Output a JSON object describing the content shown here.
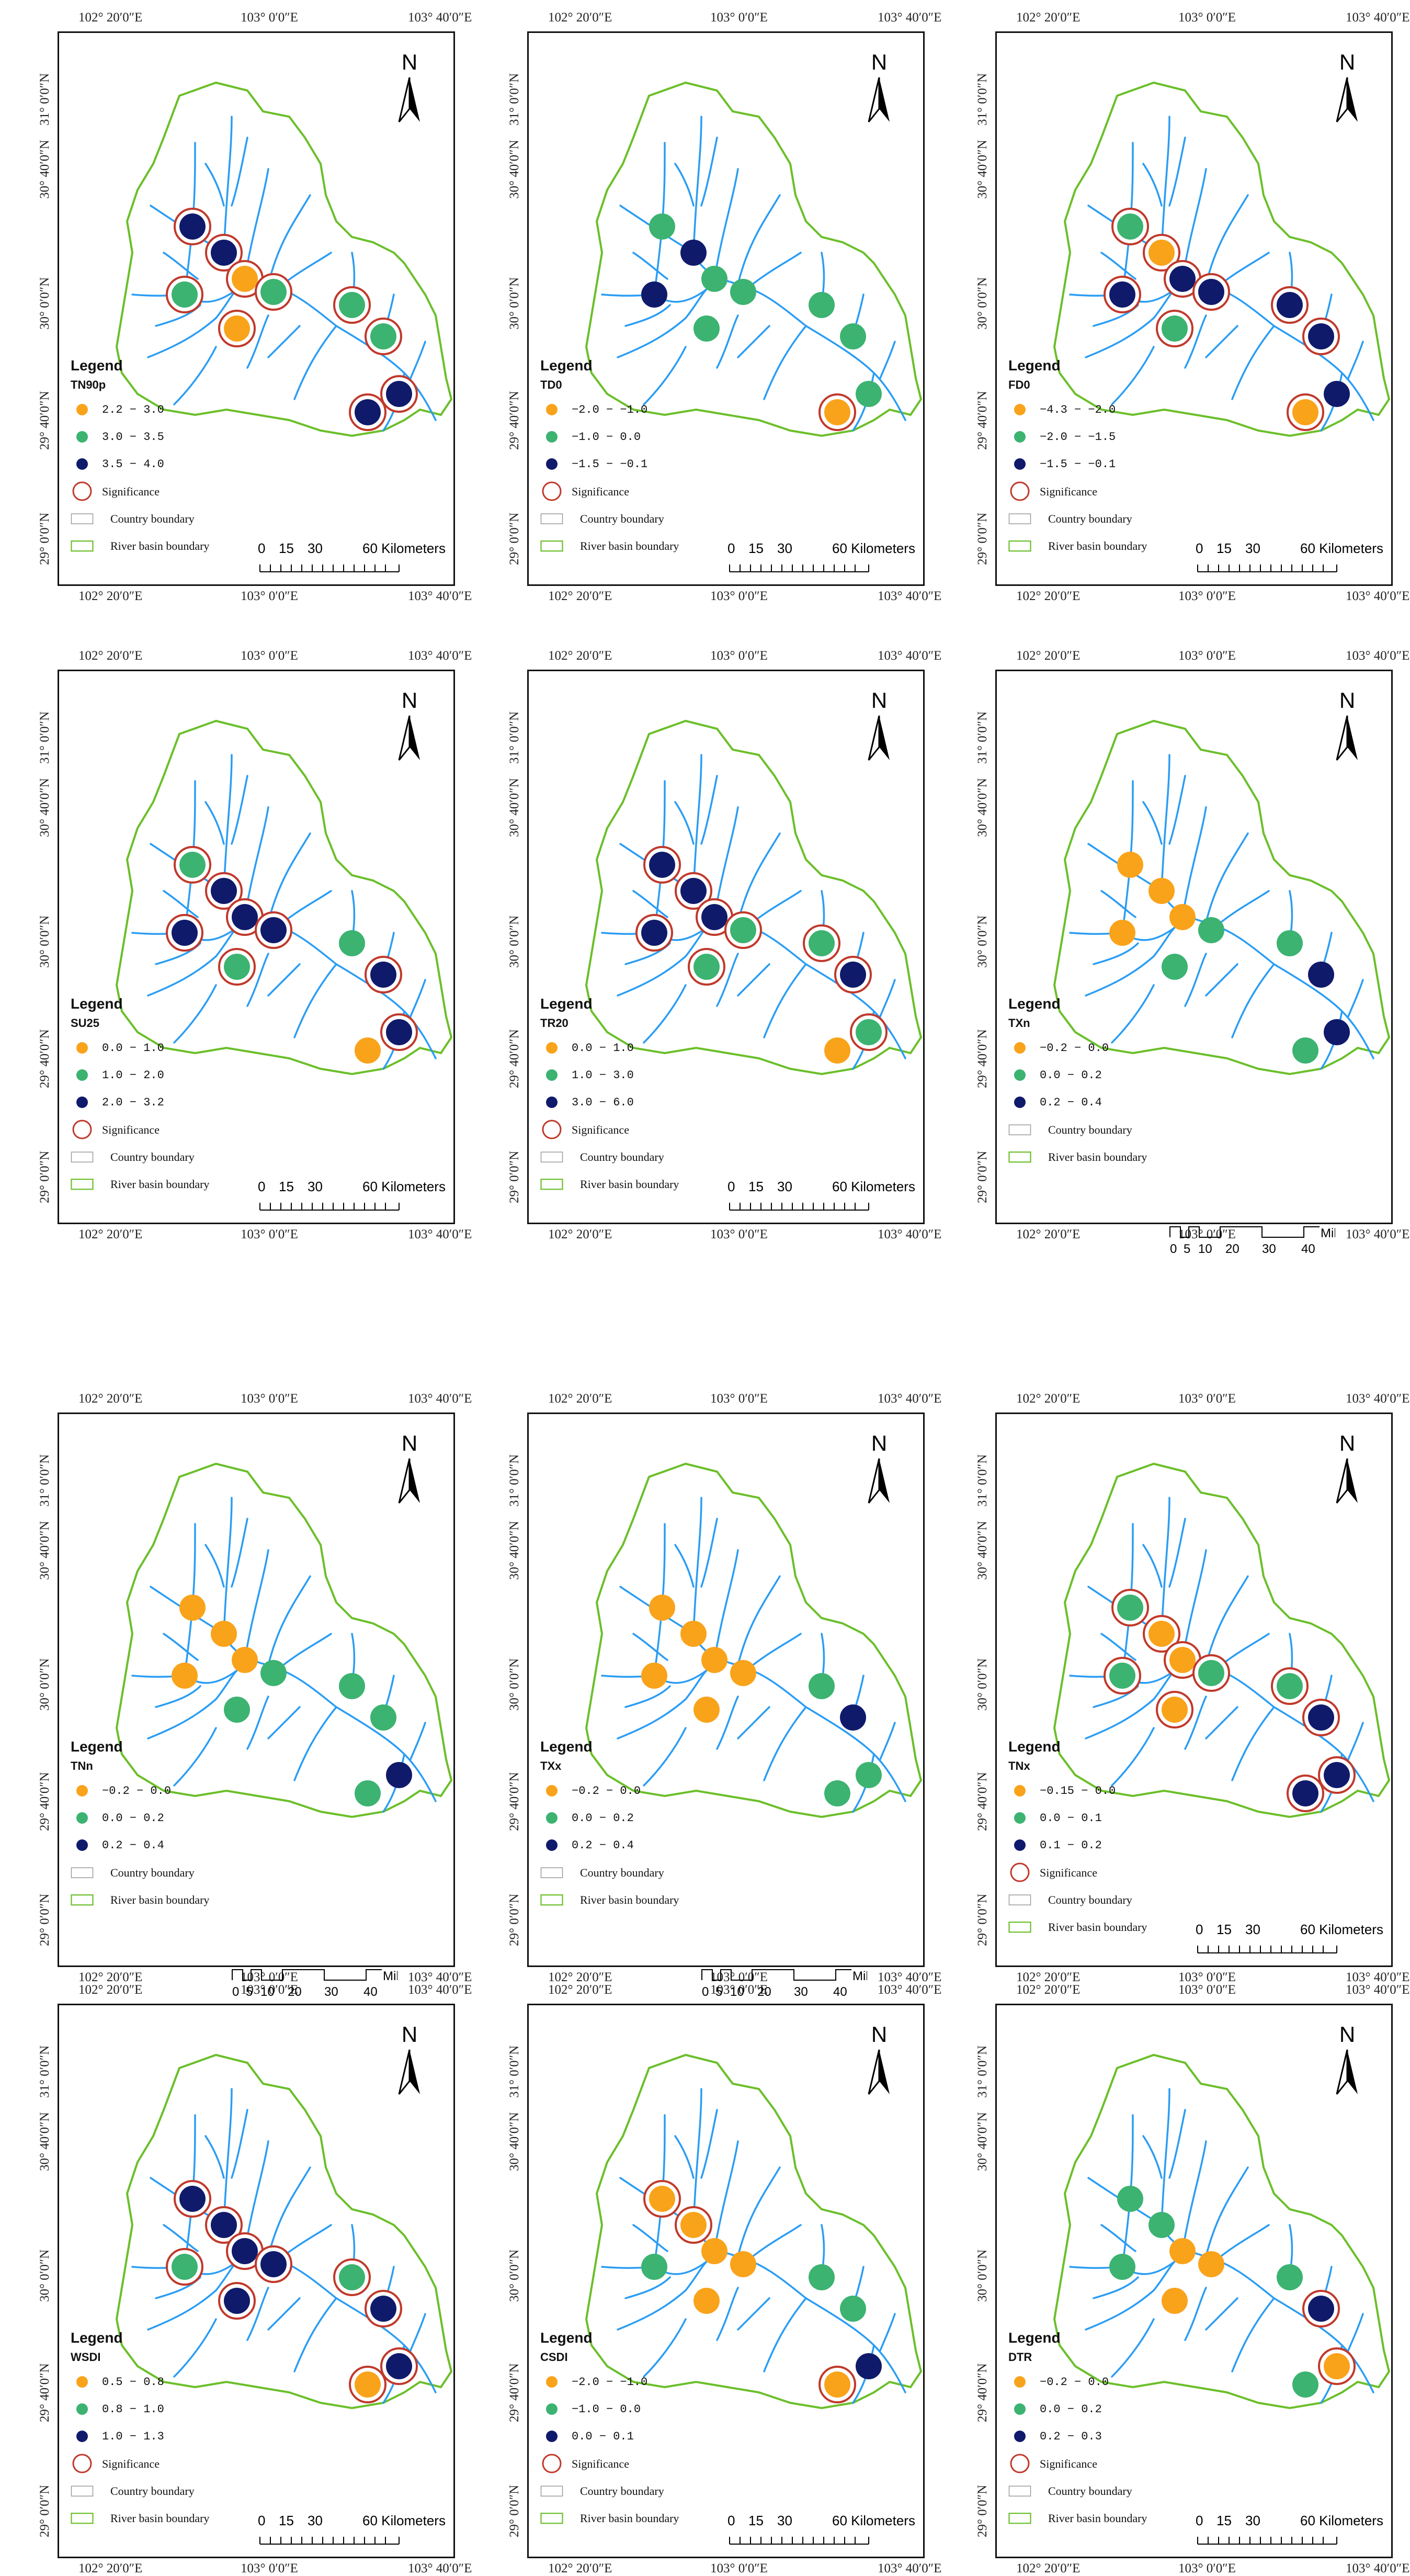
{
  "page": {
    "width_label": "2696x4883"
  },
  "coords": {
    "top_lon": [
      "102° 20′0″E",
      "103° 0′0″E",
      "103° 40′0″E"
    ],
    "lat": [
      "31° 0′0″N",
      "30° 40′0″N",
      "30° 0′0″N",
      "29° 40′0″N",
      "29° 0′0″N"
    ],
    "side_lat_left": [
      "31° 0′0″N",
      "30° 40′0″N",
      "30° 0′0″N",
      "29° 40′0″N",
      "29° 0′0″N"
    ]
  },
  "legend_title": "Legend",
  "significance_label": "Significance",
  "country_label": "Country boundary",
  "basin_label": "River basin boundary",
  "north_label": "N",
  "km_scale": {
    "ticks": [
      "0",
      "15",
      "30",
      "60 Kilometers"
    ]
  },
  "mile_scale": {
    "ticks_top": [
      "0",
      "5",
      "10",
      "20",
      "30",
      "40"
    ],
    "unit": "Miles"
  },
  "colors": {
    "orange": "#f9a31b",
    "green": "#3cb371",
    "navy": "#101a6b",
    "ring": "#c0392b",
    "river": "#2a9df4",
    "basin": "#6bbf2a"
  },
  "panels": [
    {
      "id": "TN90p",
      "index": "TN90p",
      "classes": [
        "2.2 − 3.0",
        "3.0 − 3.5",
        "3.5 − 4.0"
      ],
      "sig": true,
      "scale": "km",
      "stations": [
        [
          "navy",
          1
        ],
        [
          "green",
          1
        ],
        [
          "navy",
          1
        ],
        [
          "orange",
          1
        ],
        [
          "green",
          1
        ],
        [
          "orange",
          1
        ],
        [
          "green",
          1
        ],
        [
          "green",
          1
        ],
        [
          "navy",
          1
        ],
        [
          "navy",
          1
        ]
      ]
    },
    {
      "id": "TD0",
      "index": "TD0",
      "classes": [
        "−2.0 − −1.0",
        "−1.0 − 0.0",
        "−1.5 − −0.1"
      ],
      "sig": true,
      "scale": "km",
      "stations": [
        [
          "green",
          0
        ],
        [
          "navy",
          0
        ],
        [
          "navy",
          0
        ],
        [
          "green",
          0
        ],
        [
          "green",
          0
        ],
        [
          "green",
          0
        ],
        [
          "green",
          0
        ],
        [
          "green",
          0
        ],
        [
          "orange",
          1
        ],
        [
          "green",
          0
        ]
      ]
    },
    {
      "id": "FD0",
      "index": "FD0",
      "classes": [
        "−4.3 − −2.0",
        "−2.0 − −1.5",
        "−1.5 − −0.1"
      ],
      "sig": true,
      "scale": "km",
      "stations": [
        [
          "green",
          1
        ],
        [
          "navy",
          1
        ],
        [
          "orange",
          1
        ],
        [
          "navy",
          1
        ],
        [
          "navy",
          1
        ],
        [
          "green",
          1
        ],
        [
          "navy",
          1
        ],
        [
          "navy",
          1
        ],
        [
          "orange",
          1
        ],
        [
          "navy",
          0
        ]
      ]
    },
    {
      "id": "SU25",
      "index": "SU25",
      "classes": [
        "0.0 − 1.0",
        "1.0 − 2.0",
        "2.0 − 3.2"
      ],
      "sig": true,
      "scale": "km",
      "stations": [
        [
          "green",
          1
        ],
        [
          "navy",
          1
        ],
        [
          "navy",
          1
        ],
        [
          "navy",
          1
        ],
        [
          "navy",
          1
        ],
        [
          "green",
          1
        ],
        [
          "green",
          0
        ],
        [
          "navy",
          1
        ],
        [
          "orange",
          0
        ],
        [
          "navy",
          1
        ]
      ]
    },
    {
      "id": "TR20",
      "index": "TR20",
      "classes": [
        "0.0 − 1.0",
        "1.0 − 3.0",
        "3.0 − 6.0"
      ],
      "sig": true,
      "scale": "km",
      "stations": [
        [
          "navy",
          1
        ],
        [
          "navy",
          1
        ],
        [
          "navy",
          1
        ],
        [
          "navy",
          1
        ],
        [
          "green",
          1
        ],
        [
          "green",
          1
        ],
        [
          "green",
          1
        ],
        [
          "navy",
          1
        ],
        [
          "orange",
          0
        ],
        [
          "green",
          1
        ]
      ]
    },
    {
      "id": "TXn",
      "index": "TXn",
      "classes": [
        "−0.2 − 0.0",
        "0.0 − 0.2",
        "0.2 − 0.4"
      ],
      "sig": false,
      "scale": "miles",
      "stations": [
        [
          "orange",
          0
        ],
        [
          "orange",
          0
        ],
        [
          "orange",
          0
        ],
        [
          "orange",
          0
        ],
        [
          "green",
          0
        ],
        [
          "green",
          0
        ],
        [
          "green",
          0
        ],
        [
          "navy",
          0
        ],
        [
          "green",
          0
        ],
        [
          "navy",
          0
        ]
      ]
    },
    {
      "id": "TNn",
      "index": "TNn",
      "classes": [
        "−0.2 − 0.0",
        "0.0 − 0.2",
        "0.2 − 0.4"
      ],
      "sig": false,
      "scale": "miles",
      "stations": [
        [
          "orange",
          0
        ],
        [
          "orange",
          0
        ],
        [
          "orange",
          0
        ],
        [
          "orange",
          0
        ],
        [
          "green",
          0
        ],
        [
          "green",
          0
        ],
        [
          "green",
          0
        ],
        [
          "green",
          0
        ],
        [
          "green",
          0
        ],
        [
          "navy",
          0
        ]
      ]
    },
    {
      "id": "TXx",
      "index": "TXx",
      "classes": [
        "−0.2 − 0.0",
        "0.0 − 0.2",
        "0.2 − 0.4"
      ],
      "sig": false,
      "scale": "miles",
      "stations": [
        [
          "orange",
          0
        ],
        [
          "orange",
          0
        ],
        [
          "orange",
          0
        ],
        [
          "orange",
          0
        ],
        [
          "orange",
          0
        ],
        [
          "orange",
          0
        ],
        [
          "green",
          0
        ],
        [
          "navy",
          0
        ],
        [
          "green",
          0
        ],
        [
          "green",
          0
        ]
      ]
    },
    {
      "id": "TNx",
      "index": "TNx",
      "classes": [
        "−0.15 − 0.0",
        "0.0 − 0.1",
        "0.1 − 0.2"
      ],
      "sig": true,
      "scale": "km",
      "stations": [
        [
          "green",
          1
        ],
        [
          "green",
          1
        ],
        [
          "orange",
          1
        ],
        [
          "orange",
          1
        ],
        [
          "green",
          1
        ],
        [
          "orange",
          1
        ],
        [
          "green",
          1
        ],
        [
          "navy",
          1
        ],
        [
          "navy",
          1
        ],
        [
          "navy",
          1
        ]
      ]
    },
    {
      "id": "WSDI",
      "index": "WSDI",
      "classes": [
        "0.5 − 0.8",
        "0.8 − 1.0",
        "1.0 − 1.3"
      ],
      "sig": true,
      "scale": "km",
      "stations": [
        [
          "navy",
          1
        ],
        [
          "green",
          1
        ],
        [
          "navy",
          1
        ],
        [
          "navy",
          1
        ],
        [
          "navy",
          1
        ],
        [
          "navy",
          1
        ],
        [
          "green",
          1
        ],
        [
          "navy",
          1
        ],
        [
          "orange",
          1
        ],
        [
          "navy",
          1
        ]
      ]
    },
    {
      "id": "CSDI",
      "index": "CSDI",
      "classes": [
        "−2.0 − −1.0",
        "−1.0 − 0.0",
        "0.0 − 0.1"
      ],
      "sig": true,
      "scale": "km",
      "stations": [
        [
          "orange",
          1
        ],
        [
          "green",
          0
        ],
        [
          "orange",
          1
        ],
        [
          "orange",
          0
        ],
        [
          "orange",
          0
        ],
        [
          "orange",
          0
        ],
        [
          "green",
          0
        ],
        [
          "green",
          0
        ],
        [
          "orange",
          1
        ],
        [
          "navy",
          0
        ]
      ]
    },
    {
      "id": "DTR",
      "index": "DTR",
      "classes": [
        "−0.2 − 0.0",
        "0.0 − 0.2",
        "0.2 − 0.3"
      ],
      "sig": true,
      "scale": "km",
      "stations": [
        [
          "green",
          0
        ],
        [
          "green",
          0
        ],
        [
          "green",
          0
        ],
        [
          "orange",
          0
        ],
        [
          "orange",
          0
        ],
        [
          "orange",
          0
        ],
        [
          "green",
          0
        ],
        [
          "navy",
          1
        ],
        [
          "green",
          0
        ],
        [
          "orange",
          1
        ]
      ]
    }
  ]
}
